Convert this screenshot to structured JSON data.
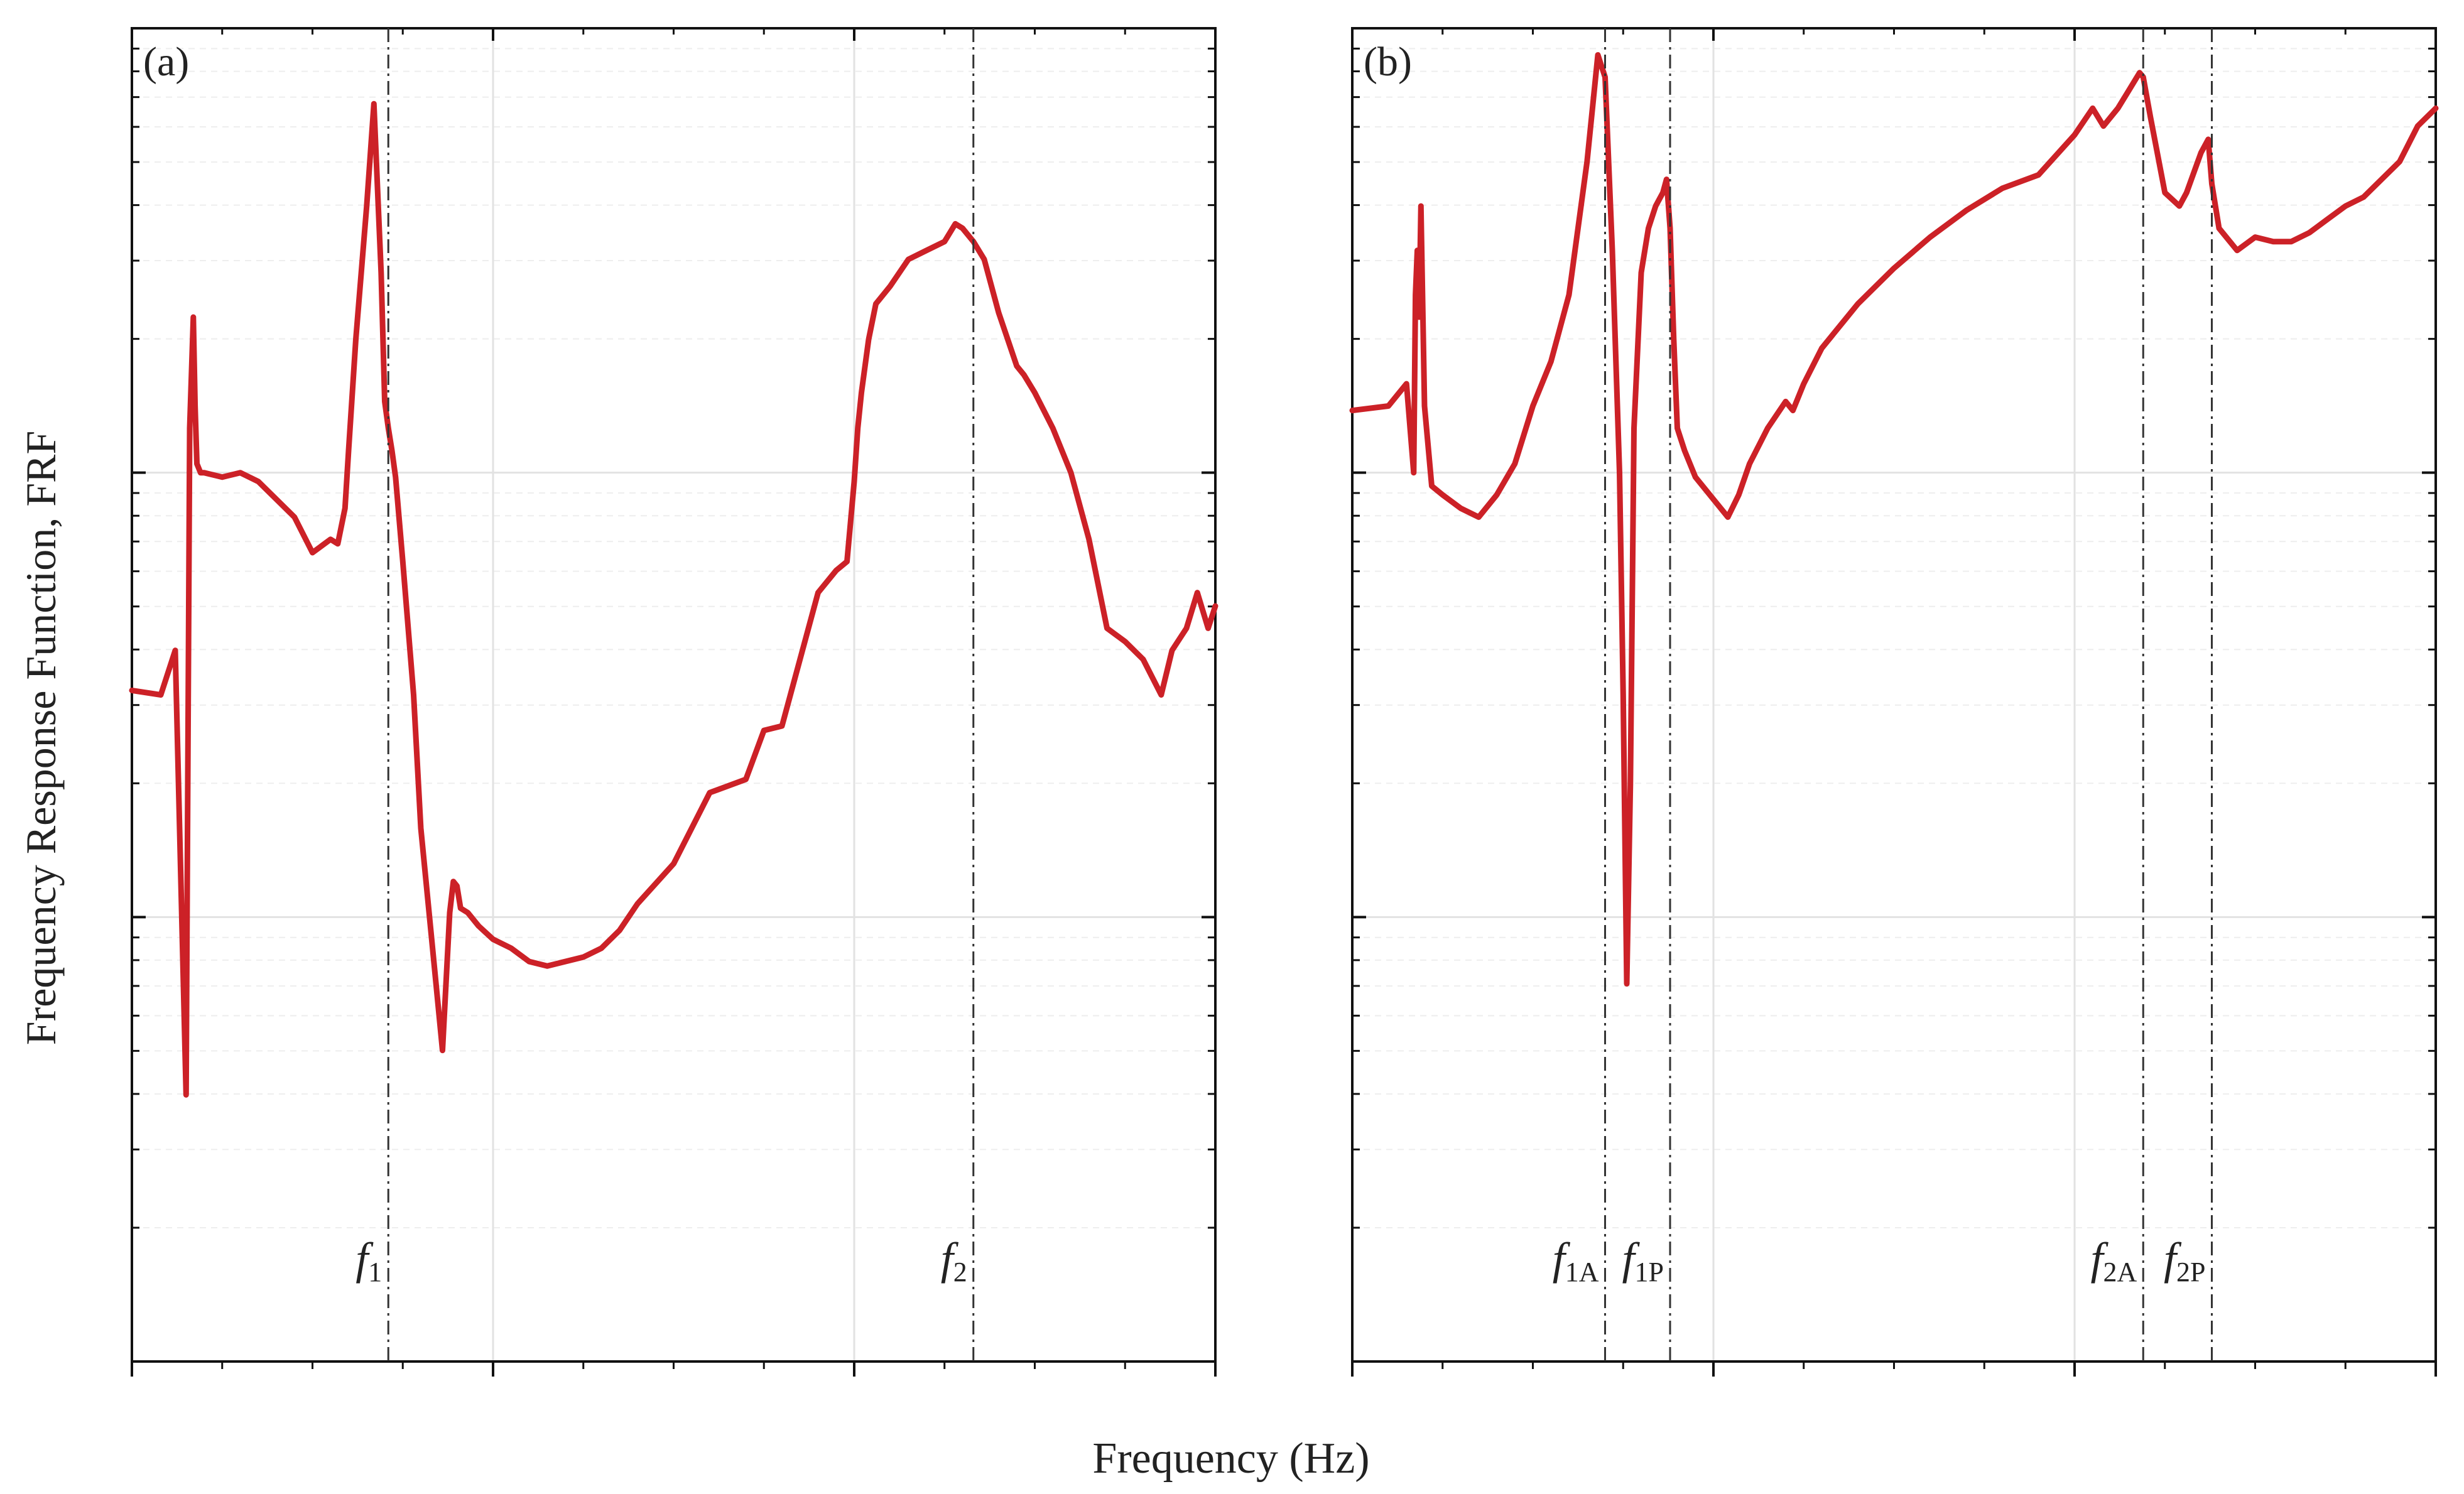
{
  "figure": {
    "ylabel": "Frequency Response Function, FRF",
    "xlabel": "Frequency (Hz)"
  },
  "colors": {
    "line": "#cc2127",
    "axis": "#111111",
    "grid": "#e2e2e2",
    "marker": "#333333"
  },
  "chart_data": [
    {
      "type": "line",
      "panel": "(a)",
      "yscale": "log",
      "xlim": [
        0,
        3
      ],
      "ylim": [
        -2,
        1
      ],
      "grid": true,
      "markers": [
        {
          "x": 0.71,
          "label": "f",
          "sub": "1"
        },
        {
          "x": 2.33,
          "label": "f",
          "sub": "2"
        }
      ],
      "series": [
        {
          "x": [
            0.0,
            0.08,
            0.12,
            0.15,
            0.16,
            0.17,
            0.175,
            0.18,
            0.185,
            0.19,
            0.2,
            0.25,
            0.3,
            0.35,
            0.4,
            0.45,
            0.5,
            0.55,
            0.57,
            0.59,
            0.6,
            0.62,
            0.65,
            0.67,
            0.69,
            0.7,
            0.71,
            0.72,
            0.73,
            0.75,
            0.78,
            0.8,
            0.83,
            0.86,
            0.88,
            0.89,
            0.9,
            0.91,
            0.93,
            0.96,
            1.0,
            1.05,
            1.1,
            1.15,
            1.2,
            1.25,
            1.3,
            1.35,
            1.4,
            1.5,
            1.6,
            1.7,
            1.75,
            1.8,
            1.9,
            1.95,
            1.98,
            2.0,
            2.01,
            2.02,
            2.04,
            2.06,
            2.1,
            2.15,
            2.2,
            2.25,
            2.28,
            2.3,
            2.33,
            2.36,
            2.4,
            2.45,
            2.47,
            2.5,
            2.55,
            2.6,
            2.65,
            2.7,
            2.75,
            2.8,
            2.85,
            2.88,
            2.92,
            2.95,
            2.98,
            3.0
          ],
          "y": [
            -0.49,
            -0.5,
            -0.4,
            -1.4,
            0.1,
            0.35,
            0.15,
            0.02,
            0.01,
            0.0,
            0.0,
            -0.01,
            0.0,
            -0.02,
            -0.06,
            -0.1,
            -0.18,
            -0.15,
            -0.16,
            -0.08,
            0.05,
            0.3,
            0.6,
            0.83,
            0.45,
            0.16,
            0.1,
            0.05,
            -0.01,
            -0.2,
            -0.5,
            -0.8,
            -1.05,
            -1.3,
            -0.99,
            -0.92,
            -0.93,
            -0.98,
            -0.99,
            -1.02,
            -1.05,
            -1.07,
            -1.1,
            -1.11,
            -1.1,
            -1.09,
            -1.07,
            -1.03,
            -0.97,
            -0.88,
            -0.72,
            -0.69,
            -0.58,
            -0.57,
            -0.27,
            -0.22,
            -0.2,
            -0.02,
            0.1,
            0.18,
            0.3,
            0.38,
            0.42,
            0.48,
            0.5,
            0.52,
            0.56,
            0.55,
            0.52,
            0.48,
            0.36,
            0.24,
            0.22,
            0.18,
            0.1,
            0.0,
            -0.15,
            -0.35,
            -0.38,
            -0.42,
            -0.5,
            -0.4,
            -0.35,
            -0.27,
            -0.35,
            -0.3
          ]
        }
      ]
    },
    {
      "type": "line",
      "panel": "(b)",
      "yscale": "log",
      "xlim": [
        0,
        3
      ],
      "ylim": [
        -2,
        1
      ],
      "grid": true,
      "markers": [
        {
          "x": 0.7,
          "label": "f",
          "sub": "1A"
        },
        {
          "x": 0.88,
          "label": "f",
          "sub": "1P"
        },
        {
          "x": 2.19,
          "label": "f",
          "sub": "2A"
        },
        {
          "x": 2.38,
          "label": "f",
          "sub": "2P"
        }
      ],
      "series": [
        {
          "x": [
            0.0,
            0.1,
            0.15,
            0.17,
            0.175,
            0.18,
            0.185,
            0.19,
            0.2,
            0.22,
            0.25,
            0.3,
            0.35,
            0.4,
            0.45,
            0.5,
            0.55,
            0.6,
            0.65,
            0.68,
            0.7,
            0.72,
            0.74,
            0.75,
            0.76,
            0.77,
            0.78,
            0.8,
            0.82,
            0.84,
            0.86,
            0.87,
            0.88,
            0.89,
            0.9,
            0.92,
            0.95,
            1.0,
            1.04,
            1.07,
            1.1,
            1.15,
            1.2,
            1.22,
            1.25,
            1.3,
            1.4,
            1.5,
            1.6,
            1.7,
            1.8,
            1.9,
            2.0,
            2.05,
            2.08,
            2.1,
            2.12,
            2.15,
            2.18,
            2.19,
            2.21,
            2.25,
            2.29,
            2.31,
            2.35,
            2.37,
            2.38,
            2.4,
            2.45,
            2.5,
            2.55,
            2.6,
            2.65,
            2.7,
            2.75,
            2.8,
            2.9,
            2.95,
            3.0
          ],
          "y": [
            0.14,
            0.15,
            0.2,
            0.0,
            0.4,
            0.5,
            0.35,
            0.6,
            0.15,
            -0.03,
            -0.05,
            -0.08,
            -0.1,
            -0.05,
            0.02,
            0.15,
            0.25,
            0.4,
            0.7,
            0.94,
            0.89,
            0.5,
            0.0,
            -0.5,
            -1.15,
            -0.7,
            0.1,
            0.45,
            0.55,
            0.6,
            0.63,
            0.66,
            0.55,
            0.3,
            0.1,
            0.05,
            -0.01,
            -0.06,
            -0.1,
            -0.05,
            0.02,
            0.1,
            0.16,
            0.14,
            0.2,
            0.28,
            0.38,
            0.46,
            0.53,
            0.59,
            0.64,
            0.67,
            0.76,
            0.82,
            0.78,
            0.8,
            0.82,
            0.86,
            0.9,
            0.89,
            0.8,
            0.63,
            0.6,
            0.63,
            0.72,
            0.75,
            0.65,
            0.55,
            0.5,
            0.53,
            0.52,
            0.52,
            0.54,
            0.57,
            0.6,
            0.62,
            0.7,
            0.78,
            0.82
          ]
        }
      ]
    }
  ]
}
